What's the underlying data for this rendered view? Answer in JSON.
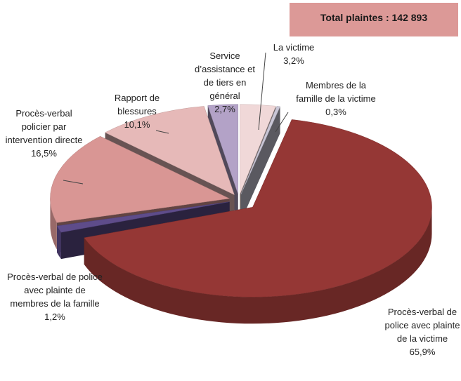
{
  "chart_data": {
    "type": "pie3d",
    "title": "Total plaintes : 142 893",
    "categories": [
      "La victime",
      "Membres de la famille de la victime",
      "Procès-verbal de police avec plainte de la victime",
      "Procès-verbal de police avec plainte de membres de la famille",
      "Procès-verbal policier par intervention directe",
      "Rapport de blessures",
      "Service d’assistance et de tiers en général"
    ],
    "values": [
      3.2,
      0.3,
      65.9,
      1.2,
      16.5,
      10.1,
      2.7
    ],
    "value_labels": [
      "3,2%",
      "0,3%",
      "65,9%",
      "1,2%",
      "16,5%",
      "10,1%",
      "2,7%"
    ],
    "colors": [
      "#f0d8d8",
      "#c9c6d6",
      "#953735",
      "#5e4c8a",
      "#d99694",
      "#e6b9b8",
      "#b3a2c7"
    ]
  }
}
